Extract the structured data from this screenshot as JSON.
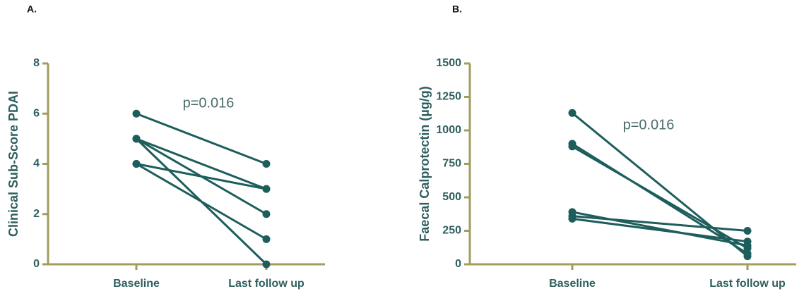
{
  "chart_data": [
    {
      "type": "line",
      "panel": "A.",
      "ylabel": "Clinical Sub-Score PDAI",
      "annotation": "p=0.016",
      "categories": [
        "Baseline",
        "Last follow up"
      ],
      "color": "#1d5e5c",
      "ylim": [
        0,
        8
      ],
      "yticks": [
        0,
        2,
        4,
        6,
        8
      ],
      "series": [
        {
          "values": [
            6,
            4
          ]
        },
        {
          "values": [
            5,
            3
          ]
        },
        {
          "values": [
            5,
            2
          ]
        },
        {
          "values": [
            5,
            0
          ]
        },
        {
          "values": [
            4,
            3
          ]
        },
        {
          "values": [
            4,
            1
          ]
        }
      ]
    },
    {
      "type": "line",
      "panel": "B.",
      "ylabel": "Faecal Calprotectin (µg/g)",
      "annotation": "p=0.016",
      "categories": [
        "Baseline",
        "Last follow up"
      ],
      "color": "#1d5e5c",
      "ylim": [
        0,
        1500
      ],
      "yticks": [
        0,
        250,
        500,
        750,
        1000,
        1250,
        1500
      ],
      "series": [
        {
          "values": [
            1130,
            60
          ]
        },
        {
          "values": [
            900,
            80
          ]
        },
        {
          "values": [
            880,
            120
          ]
        },
        {
          "values": [
            390,
            140
          ]
        },
        {
          "values": [
            360,
            250
          ]
        },
        {
          "values": [
            340,
            170
          ]
        }
      ]
    }
  ]
}
